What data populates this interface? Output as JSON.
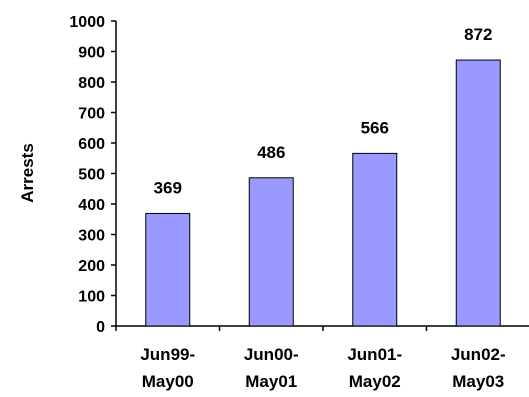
{
  "chart_data": {
    "type": "bar",
    "title": "",
    "xlabel": "",
    "ylabel": "Arrests",
    "ylim": [
      0,
      1000
    ],
    "yticks": [
      0,
      100,
      200,
      300,
      400,
      500,
      600,
      700,
      800,
      900,
      1000
    ],
    "categories": [
      [
        "Jun99-",
        "May00"
      ],
      [
        "Jun00-",
        "May01"
      ],
      [
        "Jun01-",
        "May02"
      ],
      [
        "Jun02-",
        "May03"
      ]
    ],
    "values": [
      369,
      486,
      566,
      872
    ],
    "data_labels": [
      "369",
      "486",
      "566",
      "872"
    ],
    "grid": false,
    "legend": "none",
    "colors": {
      "bar_fill": "#9999ff",
      "bar_stroke": "#000000",
      "axis": "#000000"
    }
  }
}
